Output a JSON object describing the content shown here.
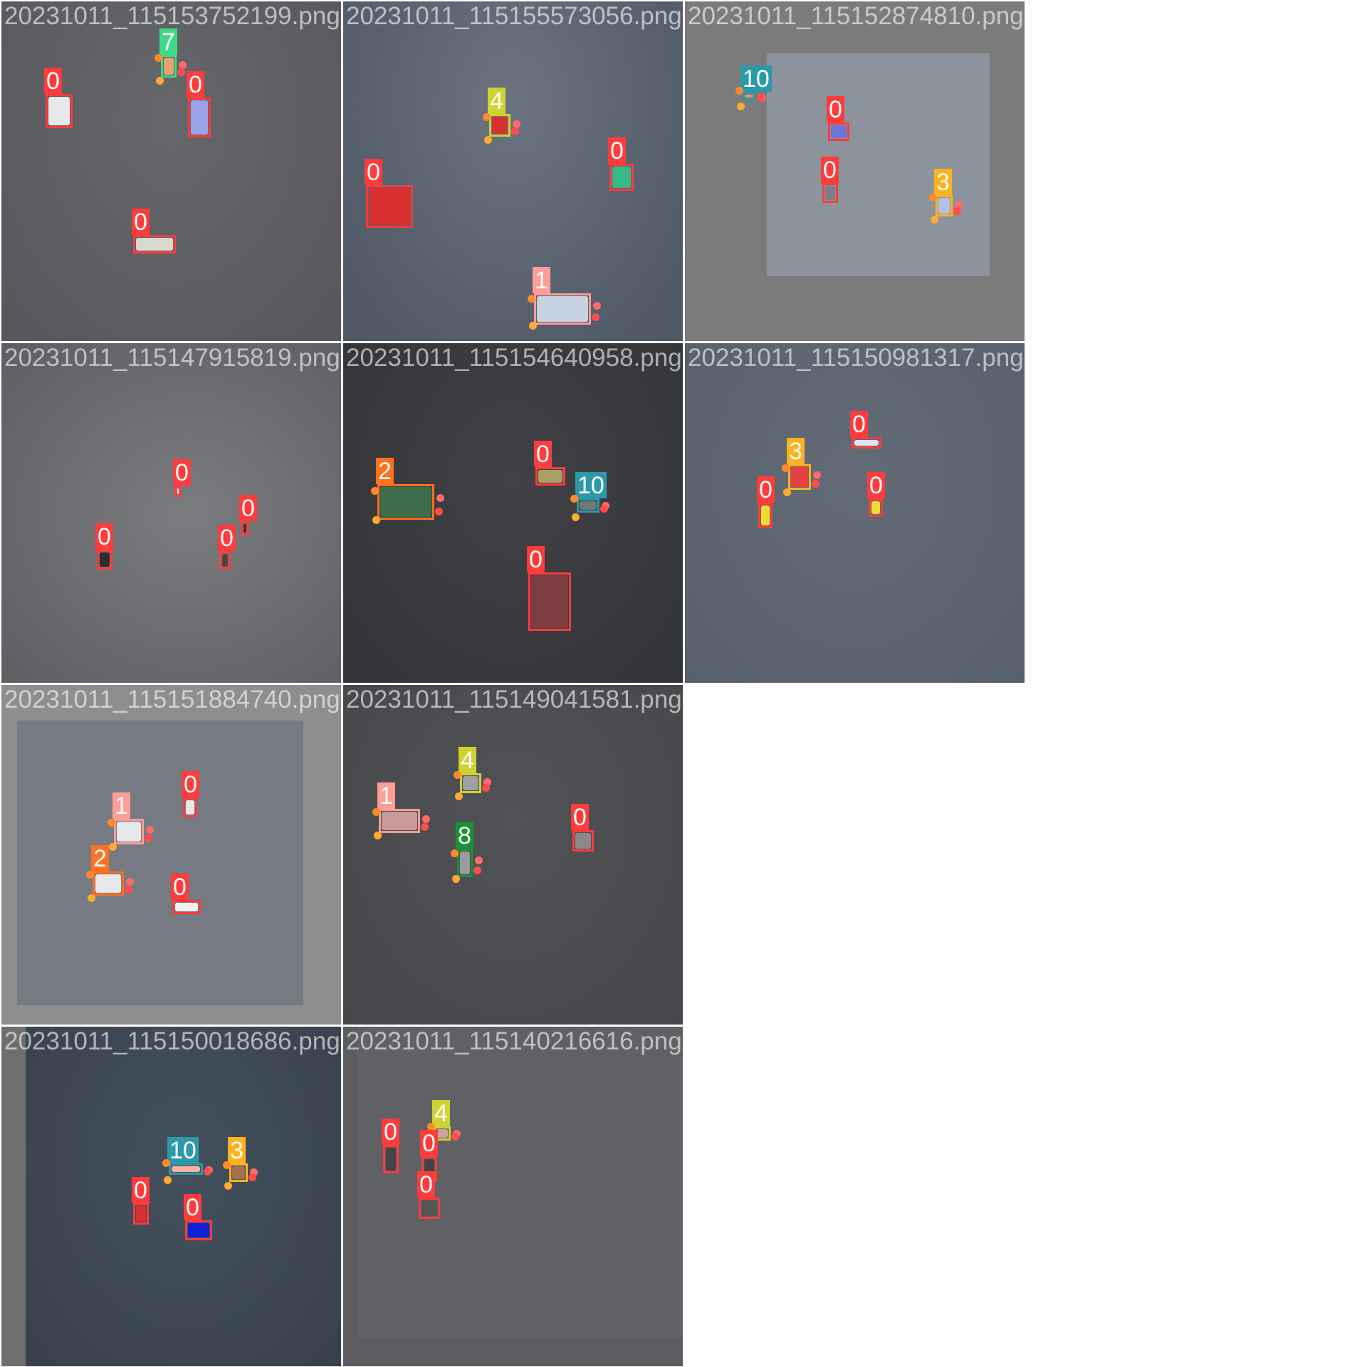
{
  "palette": {
    "0": "#ff3b3b",
    "1": "#ff9d97",
    "2": "#ff701f",
    "3": "#ffb21d",
    "4": "#cfd231",
    "7": "#3ddb86",
    "8": "#1a9334",
    "10": "#2c99a8"
  },
  "tiles": [
    {
      "filename": "20231011_115153752199.png",
      "bg": "#5b5d61"
    },
    {
      "filename": "20231011_115155573056.png",
      "bg": "#5e6672"
    },
    {
      "filename": "20231011_115152874810.png",
      "bg": "#7a7a7a"
    },
    {
      "filename": "20231011_115147915819.png",
      "bg": "#6a6c70"
    },
    {
      "filename": "20231011_115154640958.png",
      "bg": "#3a3b3f"
    },
    {
      "filename": "20231011_115150981317.png",
      "bg": "#5c6570"
    },
    {
      "filename": "20231011_115151884740.png",
      "bg": "#8d8d8d"
    },
    {
      "filename": "20231011_115149041581.png",
      "bg": "#4a4c50"
    },
    {
      "filename": "20231011_115150018686.png",
      "bg": "#3d4753"
    },
    {
      "filename": "20231011_115140216616.png",
      "bg": "#5a5c60"
    }
  ],
  "detections": [
    [
      {
        "label": "0"
      },
      {
        "label": "7"
      },
      {
        "label": "0"
      },
      {
        "label": "0"
      }
    ],
    [
      {
        "label": "4"
      },
      {
        "label": "0"
      },
      {
        "label": "0"
      },
      {
        "label": "1"
      }
    ],
    [
      {
        "label": "10"
      },
      {
        "label": "0"
      },
      {
        "label": "0"
      },
      {
        "label": "3"
      }
    ],
    [
      {
        "label": "0"
      },
      {
        "label": "0"
      },
      {
        "label": "0"
      },
      {
        "label": "0"
      }
    ],
    [
      {
        "label": "0"
      },
      {
        "label": "2"
      },
      {
        "label": "10"
      },
      {
        "label": "0"
      }
    ],
    [
      {
        "label": "0"
      },
      {
        "label": "3"
      },
      {
        "label": "0"
      },
      {
        "label": "0"
      }
    ],
    [
      {
        "label": "1"
      },
      {
        "label": "0"
      },
      {
        "label": "2"
      },
      {
        "label": "0"
      }
    ],
    [
      {
        "label": "4"
      },
      {
        "label": "1"
      },
      {
        "label": "0"
      },
      {
        "label": "8"
      }
    ],
    [
      {
        "label": "10"
      },
      {
        "label": "3"
      },
      {
        "label": "0"
      },
      {
        "label": "0"
      }
    ],
    [
      {
        "label": "4"
      },
      {
        "label": "0"
      },
      {
        "label": "0"
      },
      {
        "label": "0"
      }
    ]
  ]
}
